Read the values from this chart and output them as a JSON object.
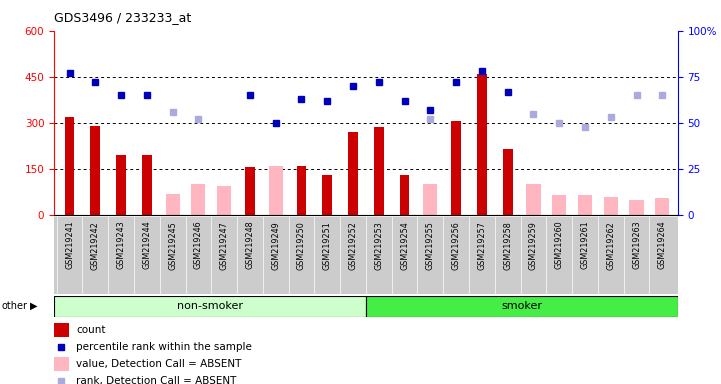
{
  "title": "GDS3496 / 233233_at",
  "samples": [
    "GSM219241",
    "GSM219242",
    "GSM219243",
    "GSM219244",
    "GSM219245",
    "GSM219246",
    "GSM219247",
    "GSM219248",
    "GSM219249",
    "GSM219250",
    "GSM219251",
    "GSM219252",
    "GSM219253",
    "GSM219254",
    "GSM219255",
    "GSM219256",
    "GSM219257",
    "GSM219258",
    "GSM219259",
    "GSM219260",
    "GSM219261",
    "GSM219262",
    "GSM219263",
    "GSM219264"
  ],
  "count": [
    320,
    290,
    195,
    195,
    null,
    null,
    null,
    155,
    null,
    160,
    130,
    270,
    285,
    130,
    null,
    305,
    460,
    215,
    null,
    null,
    null,
    null,
    null,
    null
  ],
  "rank_present": [
    77,
    72,
    65,
    65,
    null,
    null,
    null,
    65,
    50,
    63,
    62,
    70,
    72,
    62,
    57,
    72,
    78,
    67,
    null,
    null,
    null,
    null,
    null,
    null
  ],
  "rank_absent": [
    null,
    null,
    null,
    null,
    56,
    52,
    null,
    null,
    null,
    null,
    null,
    null,
    null,
    null,
    52,
    null,
    null,
    null,
    55,
    50,
    48,
    53,
    65,
    65
  ],
  "absent_value": [
    null,
    null,
    null,
    null,
    70,
    100,
    95,
    null,
    160,
    null,
    null,
    null,
    null,
    null,
    100,
    null,
    null,
    null,
    100,
    65,
    65,
    60,
    50,
    55
  ],
  "non_smoker_count": 12,
  "ylim_left": [
    0,
    600
  ],
  "ylim_right": [
    0,
    100
  ],
  "yticks_left": [
    0,
    150,
    300,
    450,
    600
  ],
  "yticks_right": [
    0,
    25,
    50,
    75,
    100
  ],
  "non_smoker_color": "#ccffcc",
  "smoker_color": "#44ee44",
  "bar_color_count": "#cc0000",
  "bar_color_absent": "#ffb6c1",
  "dot_color_rank": "#0000bb",
  "dot_color_absent_rank": "#aaaadd",
  "grid_color": "#000000",
  "bg_xticklabel_color": "#cccccc"
}
